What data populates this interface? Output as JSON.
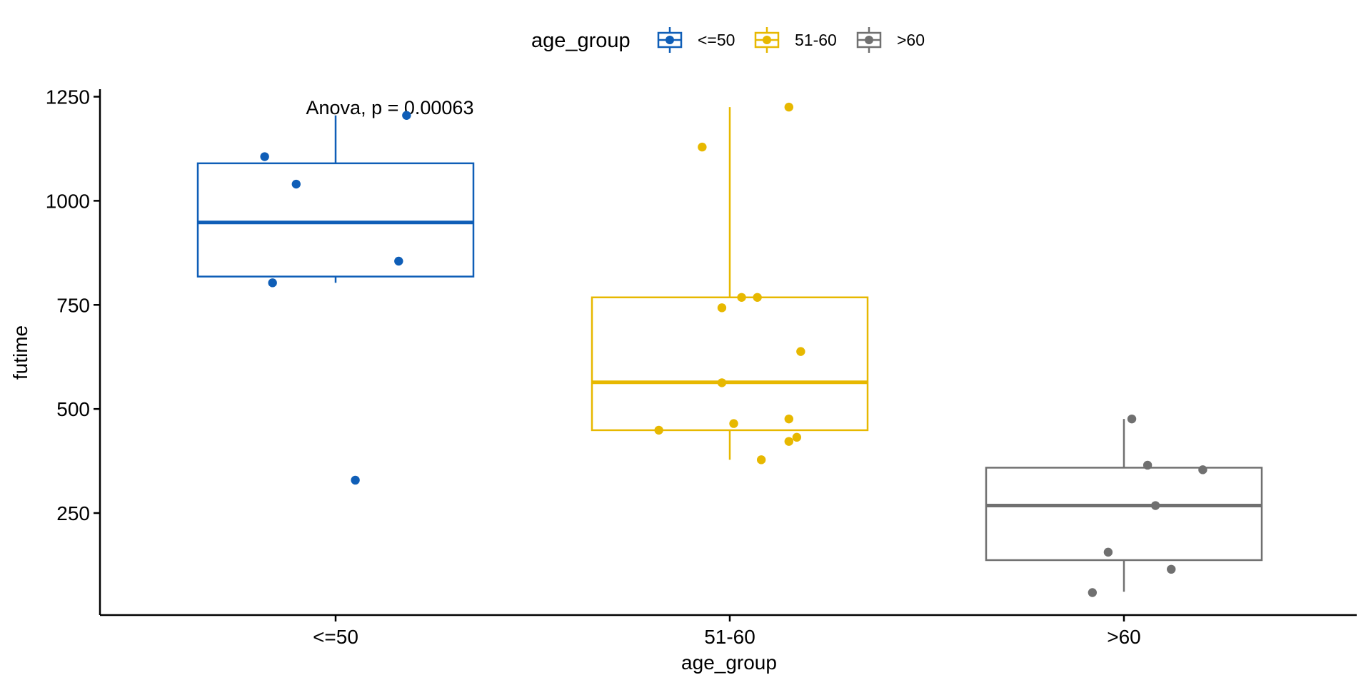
{
  "chart_data": {
    "type": "box",
    "xlabel": "age_group",
    "ylabel": "futime",
    "categories": [
      "<=50",
      "51-60",
      ">60"
    ],
    "ylim": [
      5,
      1290
    ],
    "yticks": [
      250,
      500,
      750,
      1000,
      1250
    ],
    "legend": {
      "title": "age_group",
      "position": "top",
      "entries": [
        "<=50",
        "51-60",
        ">60"
      ]
    },
    "annotation": "Anova, p = 0.00063",
    "colors": [
      "#0F5EB7",
      "#E7B800",
      "#707070"
    ],
    "series": [
      {
        "name": "<=50",
        "box": {
          "whisker_low": 803,
          "q1": 818,
          "median": 948,
          "q3": 1090,
          "whisker_high": 1205
        },
        "points": [
          {
            "jitter": -0.18,
            "y": 1106
          },
          {
            "jitter": -0.1,
            "y": 1040
          },
          {
            "jitter": -0.16,
            "y": 803
          },
          {
            "jitter": 0.16,
            "y": 855
          },
          {
            "jitter": 0.18,
            "y": 1205
          },
          {
            "jitter": 0.05,
            "y": 329
          }
        ]
      },
      {
        "name": "51-60",
        "box": {
          "whisker_low": 378,
          "q1": 449,
          "median": 564,
          "q3": 768,
          "whisker_high": 1225
        },
        "points": [
          {
            "jitter": -0.07,
            "y": 1129
          },
          {
            "jitter": 0.15,
            "y": 1225
          },
          {
            "jitter": 0.03,
            "y": 768
          },
          {
            "jitter": 0.07,
            "y": 768
          },
          {
            "jitter": -0.02,
            "y": 743
          },
          {
            "jitter": 0.18,
            "y": 638
          },
          {
            "jitter": -0.02,
            "y": 563
          },
          {
            "jitter": -0.18,
            "y": 449
          },
          {
            "jitter": 0.01,
            "y": 465
          },
          {
            "jitter": 0.15,
            "y": 476
          },
          {
            "jitter": 0.17,
            "y": 432
          },
          {
            "jitter": 0.15,
            "y": 422
          },
          {
            "jitter": 0.08,
            "y": 378
          }
        ]
      },
      {
        "name": ">60",
        "box": {
          "whisker_low": 61,
          "q1": 137,
          "median": 268,
          "q3": 359,
          "whisker_high": 476
        },
        "points": [
          {
            "jitter": 0.02,
            "y": 476
          },
          {
            "jitter": 0.06,
            "y": 365
          },
          {
            "jitter": 0.2,
            "y": 354
          },
          {
            "jitter": 0.08,
            "y": 268
          },
          {
            "jitter": -0.04,
            "y": 156
          },
          {
            "jitter": 0.12,
            "y": 115
          },
          {
            "jitter": -0.08,
            "y": 59
          }
        ]
      }
    ]
  }
}
